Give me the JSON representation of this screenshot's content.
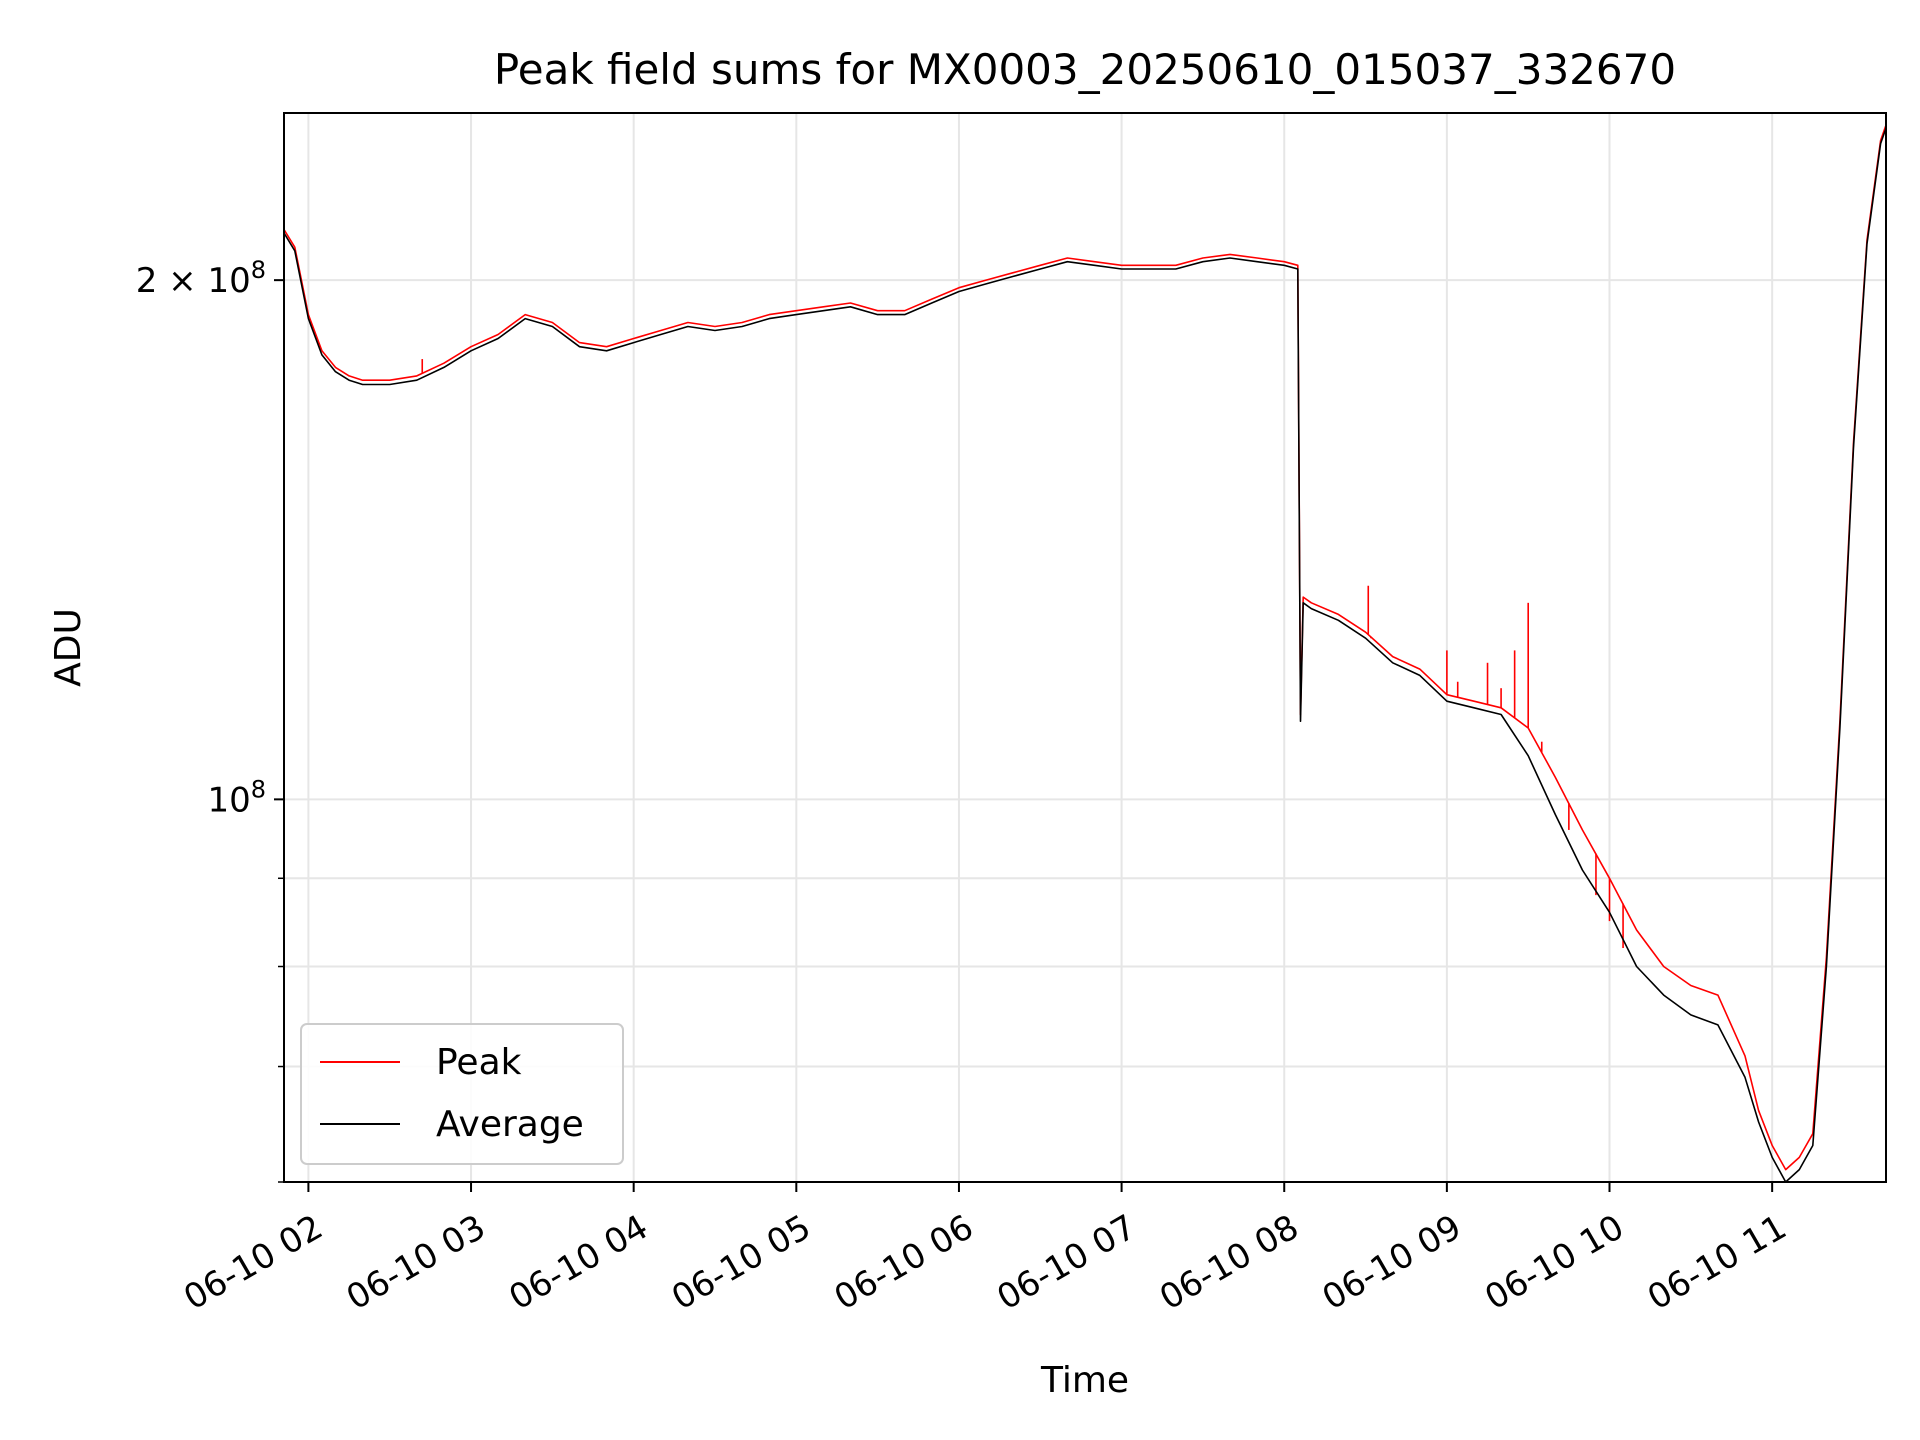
{
  "chart_data": {
    "type": "line",
    "title": "Peak field sums for MX0003_20250610_015037_332670",
    "xlabel": "Time",
    "ylabel": "ADU",
    "yscale": "log",
    "ylim": [
      60000000,
      250000000
    ],
    "xlim": [
      "06-10 01:51",
      "06-10 11:42"
    ],
    "grid": true,
    "legend_position": "lower-left",
    "x_ticks": [
      "06-10 02",
      "06-10 03",
      "06-10 04",
      "06-10 05",
      "06-10 06",
      "06-10 07",
      "06-10 08",
      "06-10 09",
      "06-10 10",
      "06-10 11"
    ],
    "y_ticks": [
      {
        "label": "10",
        "exp": "8",
        "value": 100000000
      },
      {
        "label": "2 × 10",
        "exp": "8",
        "value": 200000000
      }
    ],
    "x": [
      "01:51",
      "01:55",
      "02:00",
      "02:05",
      "02:10",
      "02:15",
      "02:20",
      "02:30",
      "02:40",
      "02:50",
      "03:00",
      "03:10",
      "03:20",
      "03:30",
      "03:40",
      "03:50",
      "04:00",
      "04:10",
      "04:20",
      "04:30",
      "04:40",
      "04:50",
      "05:00",
      "05:10",
      "05:20",
      "05:30",
      "05:40",
      "05:50",
      "06:00",
      "06:10",
      "06:20",
      "06:30",
      "06:40",
      "06:50",
      "07:00",
      "07:10",
      "07:20",
      "07:30",
      "07:40",
      "07:50",
      "08:00",
      "08:05",
      "08:06",
      "08:07",
      "08:10",
      "08:20",
      "08:30",
      "08:40",
      "08:50",
      "09:00",
      "09:10",
      "09:20",
      "09:30",
      "09:40",
      "09:50",
      "10:00",
      "10:10",
      "10:20",
      "10:30",
      "10:40",
      "10:50",
      "10:55",
      "11:00",
      "11:05",
      "11:10",
      "11:15",
      "11:20",
      "11:25",
      "11:30",
      "11:35",
      "11:40",
      "11:42"
    ],
    "series": [
      {
        "name": "Average",
        "color": "#000000",
        "values": [
          213000000,
          208000000,
          190000000,
          181000000,
          177000000,
          175000000,
          174000000,
          174000000,
          175000000,
          178000000,
          182000000,
          185000000,
          190000000,
          188000000,
          183000000,
          182000000,
          184000000,
          186000000,
          188000000,
          187000000,
          188000000,
          190000000,
          191000000,
          192000000,
          193000000,
          191000000,
          191000000,
          194000000,
          197000000,
          199000000,
          201000000,
          203000000,
          205000000,
          204000000,
          203000000,
          203000000,
          203000000,
          205000000,
          206000000,
          205000000,
          204000000,
          203000000,
          111000000,
          130000000,
          129000000,
          127000000,
          124000000,
          120000000,
          118000000,
          114000000,
          113000000,
          112000000,
          106000000,
          98000000,
          91000000,
          86000000,
          80000000,
          77000000,
          75000000,
          74000000,
          69000000,
          65000000,
          62000000,
          60000000,
          61000000,
          63000000,
          80000000,
          110000000,
          160000000,
          210000000,
          240000000,
          245000000
        ]
      },
      {
        "name": "Peak",
        "color": "#ff0000",
        "values": [
          214000000,
          209000000,
          191000000,
          182000000,
          178000000,
          176000000,
          175000000,
          175000000,
          176000000,
          179000000,
          183000000,
          186000000,
          191000000,
          189000000,
          184000000,
          183000000,
          185000000,
          187000000,
          189000000,
          188000000,
          189000000,
          191000000,
          192000000,
          193000000,
          194000000,
          192000000,
          192000000,
          195000000,
          198000000,
          200000000,
          202000000,
          204000000,
          206000000,
          205000000,
          204000000,
          204000000,
          204000000,
          206000000,
          207000000,
          206000000,
          205000000,
          204000000,
          112000000,
          131000000,
          130000000,
          128000000,
          125000000,
          121000000,
          119000000,
          115000000,
          114000000,
          113000000,
          110000000,
          103000000,
          96000000,
          90000000,
          84000000,
          80000000,
          78000000,
          77000000,
          71000000,
          66000000,
          63000000,
          61000000,
          62000000,
          64000000,
          81000000,
          111000000,
          161000000,
          211000000,
          241000000,
          246000000
        ],
        "spikes": [
          {
            "x": "02:42",
            "value": 180000000
          },
          {
            "x": "08:31",
            "value": 133000000
          },
          {
            "x": "08:32",
            "value": 124000000
          },
          {
            "x": "09:00",
            "value": 122000000
          },
          {
            "x": "09:04",
            "value": 117000000
          },
          {
            "x": "09:10",
            "value": 114000000
          },
          {
            "x": "09:15",
            "value": 120000000
          },
          {
            "x": "09:20",
            "value": 116000000
          },
          {
            "x": "09:25",
            "value": 122000000
          },
          {
            "x": "09:30",
            "value": 130000000
          },
          {
            "x": "09:35",
            "value": 108000000
          },
          {
            "x": "09:45",
            "value": 96000000
          },
          {
            "x": "09:55",
            "value": 88000000
          },
          {
            "x": "10:00",
            "value": 85000000
          },
          {
            "x": "10:05",
            "value": 82000000
          }
        ]
      }
    ]
  }
}
